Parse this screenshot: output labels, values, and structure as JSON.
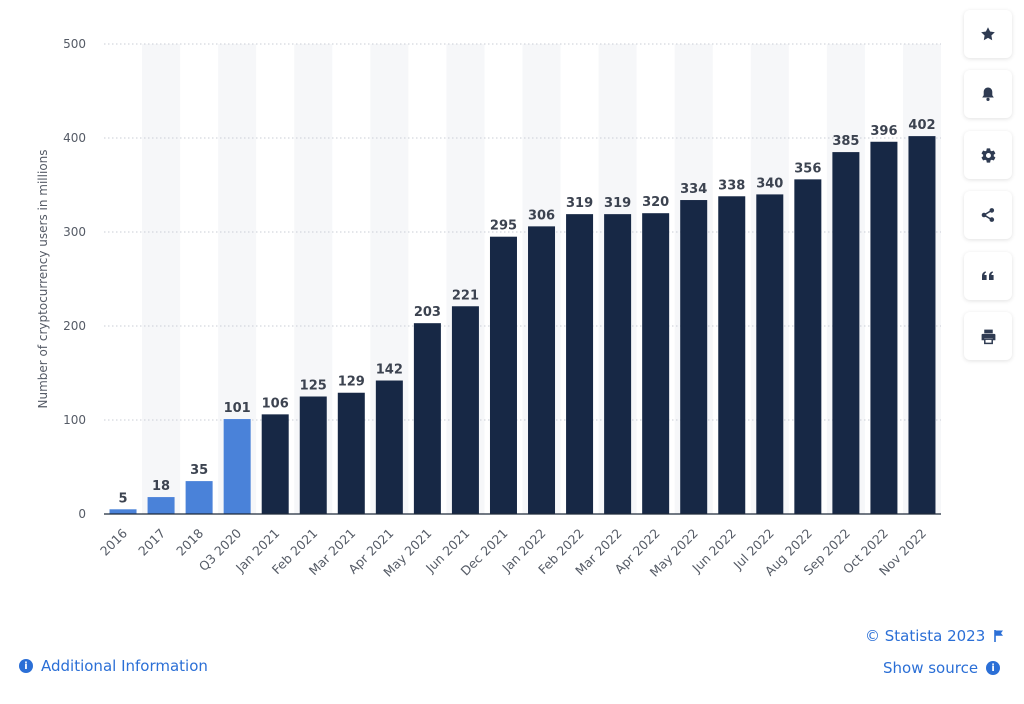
{
  "chart_data": {
    "type": "bar",
    "categories": [
      "2016",
      "2017",
      "2018",
      "Q3 2020",
      "Jan 2021",
      "Feb 2021",
      "Mar 2021",
      "Apr 2021",
      "May 2021",
      "Jun 2021",
      "Dec 2021",
      "Jan 2022",
      "Feb 2022",
      "Mar 2022",
      "Apr 2022",
      "May 2022",
      "Jun 2022",
      "Jul 2022",
      "Aug 2022",
      "Sep 2022",
      "Oct 2022",
      "Nov 2022"
    ],
    "values": [
      5,
      18,
      35,
      101,
      106,
      125,
      129,
      142,
      203,
      221,
      295,
      306,
      319,
      319,
      320,
      334,
      338,
      340,
      356,
      385,
      396,
      402
    ],
    "bar_colors": [
      "#4a82d9",
      "#4a82d9",
      "#4a82d9",
      "#4a82d9",
      "#172845",
      "#172845",
      "#172845",
      "#172845",
      "#172845",
      "#172845",
      "#172845",
      "#172845",
      "#172845",
      "#172845",
      "#172845",
      "#172845",
      "#172845",
      "#172845",
      "#172845",
      "#172845",
      "#172845",
      "#172845"
    ],
    "title": "",
    "xlabel": "",
    "ylabel": "Number of cryptocurrency users in millions",
    "ylim": [
      0,
      500
    ],
    "yticks": [
      0,
      100,
      200,
      300,
      400,
      500
    ],
    "grid": true,
    "legend": "none",
    "data_labels": true
  },
  "sidebar": {
    "buttons": [
      {
        "name": "favorite-button",
        "icon": "star-icon"
      },
      {
        "name": "notification-button",
        "icon": "bell-icon"
      },
      {
        "name": "settings-button",
        "icon": "gear-icon"
      },
      {
        "name": "share-button",
        "icon": "share-icon"
      },
      {
        "name": "cite-button",
        "icon": "quote-icon"
      },
      {
        "name": "print-button",
        "icon": "printer-icon"
      }
    ]
  },
  "footer": {
    "copyright": "© Statista 2023",
    "show_source": "Show source",
    "additional_info": "Additional Information"
  },
  "colors": {
    "accent": "#2b6fd6",
    "bar_light": "#4a82d9",
    "bar_dark": "#172845",
    "icon": "#2f3b52"
  }
}
